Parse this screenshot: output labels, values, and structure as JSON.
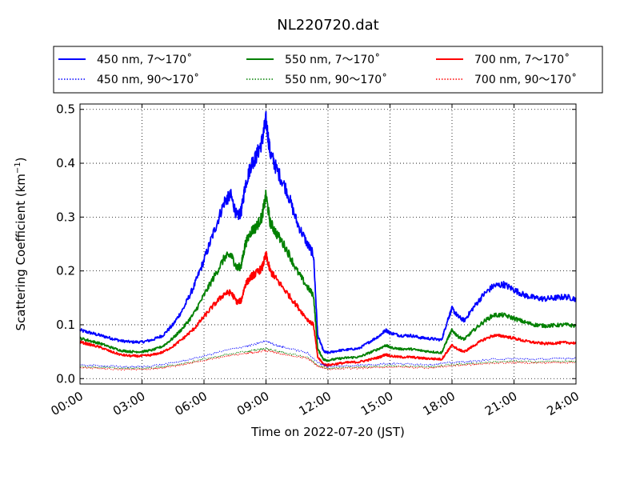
{
  "chart_data": {
    "type": "line",
    "title": "NL220720.dat",
    "xlabel": "Time on 2022-07-20 (JST)",
    "ylabel": "Scattering Coefficient (km",
    "ylabel_sup": "−1",
    "ylabel_close": ")",
    "xlim": [
      0,
      24
    ],
    "ylim": [
      -0.01,
      0.51
    ],
    "x_ticks": [
      0,
      3,
      6,
      9,
      12,
      15,
      18,
      21,
      24
    ],
    "x_tick_labels": [
      "00:00",
      "03:00",
      "06:00",
      "09:00",
      "12:00",
      "15:00",
      "18:00",
      "21:00",
      "24:00"
    ],
    "y_ticks": [
      0,
      0.1,
      0.2,
      0.3,
      0.4,
      0.5
    ],
    "y_tick_labels": [
      "0.0",
      "0.1",
      "0.2",
      "0.3",
      "0.4",
      "0.5"
    ],
    "grid": true,
    "legend_position": "top (above plot, 3 columns)",
    "series": [
      {
        "name": "450 nm, 7～170˚",
        "color": "#0000ff",
        "style": "solid",
        "points": [
          [
            0,
            0.09
          ],
          [
            0.5,
            0.085
          ],
          [
            1,
            0.08
          ],
          [
            1.5,
            0.075
          ],
          [
            2,
            0.07
          ],
          [
            2.5,
            0.068
          ],
          [
            3,
            0.068
          ],
          [
            3.5,
            0.072
          ],
          [
            4,
            0.08
          ],
          [
            4.5,
            0.1
          ],
          [
            5,
            0.13
          ],
          [
            5.5,
            0.17
          ],
          [
            6,
            0.22
          ],
          [
            6.5,
            0.275
          ],
          [
            7,
            0.33
          ],
          [
            7.3,
            0.34
          ],
          [
            7.6,
            0.3
          ],
          [
            7.8,
            0.31
          ],
          [
            8,
            0.36
          ],
          [
            8.3,
            0.4
          ],
          [
            8.5,
            0.41
          ],
          [
            8.8,
            0.44
          ],
          [
            9,
            0.48
          ],
          [
            9.2,
            0.42
          ],
          [
            9.5,
            0.39
          ],
          [
            10,
            0.35
          ],
          [
            10.5,
            0.29
          ],
          [
            11,
            0.25
          ],
          [
            11.3,
            0.23
          ],
          [
            11.5,
            0.08
          ],
          [
            11.8,
            0.05
          ],
          [
            12,
            0.048
          ],
          [
            12.5,
            0.052
          ],
          [
            13,
            0.054
          ],
          [
            13.5,
            0.056
          ],
          [
            14,
            0.068
          ],
          [
            14.5,
            0.08
          ],
          [
            14.8,
            0.09
          ],
          [
            15,
            0.085
          ],
          [
            15.5,
            0.08
          ],
          [
            16,
            0.08
          ],
          [
            16.5,
            0.076
          ],
          [
            17,
            0.074
          ],
          [
            17.5,
            0.072
          ],
          [
            17.8,
            0.11
          ],
          [
            18,
            0.13
          ],
          [
            18.3,
            0.115
          ],
          [
            18.6,
            0.108
          ],
          [
            19,
            0.13
          ],
          [
            19.5,
            0.155
          ],
          [
            20,
            0.172
          ],
          [
            20.5,
            0.175
          ],
          [
            21,
            0.165
          ],
          [
            21.5,
            0.155
          ],
          [
            22,
            0.15
          ],
          [
            22.5,
            0.148
          ],
          [
            23,
            0.15
          ],
          [
            23.5,
            0.152
          ],
          [
            24,
            0.148
          ]
        ]
      },
      {
        "name": "550 nm, 7～170˚",
        "color": "#008000",
        "style": "solid",
        "points": [
          [
            0,
            0.075
          ],
          [
            0.5,
            0.07
          ],
          [
            1,
            0.065
          ],
          [
            1.5,
            0.058
          ],
          [
            2,
            0.052
          ],
          [
            2.5,
            0.05
          ],
          [
            3,
            0.05
          ],
          [
            3.5,
            0.053
          ],
          [
            4,
            0.06
          ],
          [
            4.5,
            0.075
          ],
          [
            5,
            0.095
          ],
          [
            5.5,
            0.12
          ],
          [
            6,
            0.155
          ],
          [
            6.5,
            0.19
          ],
          [
            7,
            0.225
          ],
          [
            7.3,
            0.23
          ],
          [
            7.6,
            0.205
          ],
          [
            7.8,
            0.21
          ],
          [
            8,
            0.25
          ],
          [
            8.3,
            0.275
          ],
          [
            8.5,
            0.28
          ],
          [
            8.8,
            0.3
          ],
          [
            9,
            0.34
          ],
          [
            9.2,
            0.29
          ],
          [
            9.5,
            0.27
          ],
          [
            10,
            0.24
          ],
          [
            10.5,
            0.2
          ],
          [
            11,
            0.17
          ],
          [
            11.3,
            0.155
          ],
          [
            11.5,
            0.055
          ],
          [
            11.8,
            0.035
          ],
          [
            12,
            0.034
          ],
          [
            12.5,
            0.037
          ],
          [
            13,
            0.039
          ],
          [
            13.5,
            0.04
          ],
          [
            14,
            0.048
          ],
          [
            14.5,
            0.056
          ],
          [
            14.8,
            0.062
          ],
          [
            15,
            0.058
          ],
          [
            15.5,
            0.055
          ],
          [
            16,
            0.055
          ],
          [
            16.5,
            0.052
          ],
          [
            17,
            0.05
          ],
          [
            17.5,
            0.048
          ],
          [
            17.8,
            0.075
          ],
          [
            18,
            0.09
          ],
          [
            18.3,
            0.078
          ],
          [
            18.6,
            0.073
          ],
          [
            19,
            0.088
          ],
          [
            19.5,
            0.105
          ],
          [
            20,
            0.118
          ],
          [
            20.5,
            0.118
          ],
          [
            21,
            0.112
          ],
          [
            21.5,
            0.105
          ],
          [
            22,
            0.1
          ],
          [
            22.5,
            0.098
          ],
          [
            23,
            0.099
          ],
          [
            23.5,
            0.1
          ],
          [
            24,
            0.098
          ]
        ]
      },
      {
        "name": "700 nm, 7～170˚",
        "color": "#ff0000",
        "style": "solid",
        "points": [
          [
            0,
            0.068
          ],
          [
            0.5,
            0.063
          ],
          [
            1,
            0.058
          ],
          [
            1.5,
            0.05
          ],
          [
            2,
            0.044
          ],
          [
            2.5,
            0.042
          ],
          [
            3,
            0.042
          ],
          [
            3.5,
            0.044
          ],
          [
            4,
            0.049
          ],
          [
            4.5,
            0.06
          ],
          [
            5,
            0.075
          ],
          [
            5.5,
            0.092
          ],
          [
            6,
            0.115
          ],
          [
            6.5,
            0.138
          ],
          [
            7,
            0.158
          ],
          [
            7.3,
            0.16
          ],
          [
            7.6,
            0.142
          ],
          [
            7.8,
            0.145
          ],
          [
            8,
            0.175
          ],
          [
            8.3,
            0.19
          ],
          [
            8.5,
            0.195
          ],
          [
            8.8,
            0.205
          ],
          [
            9,
            0.23
          ],
          [
            9.2,
            0.2
          ],
          [
            9.5,
            0.185
          ],
          [
            10,
            0.16
          ],
          [
            10.5,
            0.135
          ],
          [
            11,
            0.11
          ],
          [
            11.3,
            0.1
          ],
          [
            11.5,
            0.04
          ],
          [
            11.8,
            0.026
          ],
          [
            12,
            0.025
          ],
          [
            12.5,
            0.028
          ],
          [
            13,
            0.03
          ],
          [
            13.5,
            0.031
          ],
          [
            14,
            0.035
          ],
          [
            14.5,
            0.04
          ],
          [
            14.8,
            0.045
          ],
          [
            15,
            0.042
          ],
          [
            15.5,
            0.04
          ],
          [
            16,
            0.04
          ],
          [
            16.5,
            0.038
          ],
          [
            17,
            0.037
          ],
          [
            17.5,
            0.036
          ],
          [
            17.8,
            0.052
          ],
          [
            18,
            0.062
          ],
          [
            18.3,
            0.054
          ],
          [
            18.6,
            0.05
          ],
          [
            19,
            0.06
          ],
          [
            19.5,
            0.072
          ],
          [
            20,
            0.08
          ],
          [
            20.5,
            0.079
          ],
          [
            21,
            0.075
          ],
          [
            21.5,
            0.07
          ],
          [
            22,
            0.067
          ],
          [
            22.5,
            0.065
          ],
          [
            23,
            0.066
          ],
          [
            23.5,
            0.067
          ],
          [
            24,
            0.066
          ]
        ]
      },
      {
        "name": "450 nm, 90～170˚",
        "color": "#0000ff",
        "style": "dotted",
        "points": [
          [
            0,
            0.025
          ],
          [
            1,
            0.024
          ],
          [
            2,
            0.022
          ],
          [
            3,
            0.022
          ],
          [
            4,
            0.026
          ],
          [
            5,
            0.033
          ],
          [
            6,
            0.042
          ],
          [
            7,
            0.052
          ],
          [
            8,
            0.06
          ],
          [
            8.5,
            0.064
          ],
          [
            9,
            0.07
          ],
          [
            9.5,
            0.062
          ],
          [
            10,
            0.057
          ],
          [
            11,
            0.048
          ],
          [
            11.5,
            0.03
          ],
          [
            12,
            0.022
          ],
          [
            13,
            0.024
          ],
          [
            14,
            0.026
          ],
          [
            15,
            0.028
          ],
          [
            16,
            0.027
          ],
          [
            17,
            0.026
          ],
          [
            18,
            0.03
          ],
          [
            19,
            0.032
          ],
          [
            20,
            0.036
          ],
          [
            21,
            0.037
          ],
          [
            22,
            0.036
          ],
          [
            23,
            0.037
          ],
          [
            24,
            0.038
          ]
        ]
      },
      {
        "name": "550 nm, 90～170˚",
        "color": "#008000",
        "style": "dotted",
        "points": [
          [
            0,
            0.022
          ],
          [
            1,
            0.021
          ],
          [
            2,
            0.019
          ],
          [
            3,
            0.019
          ],
          [
            4,
            0.022
          ],
          [
            5,
            0.028
          ],
          [
            6,
            0.036
          ],
          [
            7,
            0.044
          ],
          [
            8,
            0.05
          ],
          [
            8.5,
            0.053
          ],
          [
            9,
            0.056
          ],
          [
            9.5,
            0.051
          ],
          [
            10,
            0.047
          ],
          [
            11,
            0.04
          ],
          [
            11.5,
            0.025
          ],
          [
            12,
            0.019
          ],
          [
            13,
            0.021
          ],
          [
            14,
            0.022
          ],
          [
            15,
            0.024
          ],
          [
            16,
            0.023
          ],
          [
            17,
            0.022
          ],
          [
            18,
            0.026
          ],
          [
            19,
            0.028
          ],
          [
            20,
            0.031
          ],
          [
            21,
            0.032
          ],
          [
            22,
            0.031
          ],
          [
            23,
            0.032
          ],
          [
            24,
            0.032
          ]
        ]
      },
      {
        "name": "700 nm, 90～170˚",
        "color": "#ff0000",
        "style": "dotted",
        "points": [
          [
            0,
            0.02
          ],
          [
            1,
            0.019
          ],
          [
            2,
            0.017
          ],
          [
            3,
            0.017
          ],
          [
            4,
            0.02
          ],
          [
            5,
            0.026
          ],
          [
            6,
            0.034
          ],
          [
            7,
            0.041
          ],
          [
            8,
            0.047
          ],
          [
            8.5,
            0.049
          ],
          [
            9,
            0.052
          ],
          [
            9.5,
            0.048
          ],
          [
            10,
            0.044
          ],
          [
            11,
            0.038
          ],
          [
            11.5,
            0.023
          ],
          [
            12,
            0.017
          ],
          [
            13,
            0.019
          ],
          [
            14,
            0.02
          ],
          [
            15,
            0.022
          ],
          [
            16,
            0.021
          ],
          [
            17,
            0.02
          ],
          [
            18,
            0.024
          ],
          [
            19,
            0.026
          ],
          [
            20,
            0.029
          ],
          [
            21,
            0.03
          ],
          [
            22,
            0.029
          ],
          [
            23,
            0.03
          ],
          [
            24,
            0.03
          ]
        ]
      }
    ]
  }
}
